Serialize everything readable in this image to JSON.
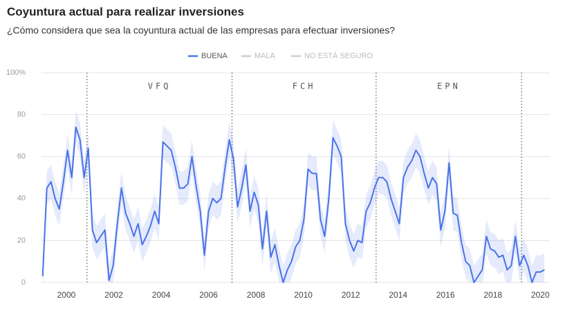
{
  "chart_data": {
    "type": "line",
    "title": "Coyuntura actual para realizar inversiones",
    "subtitle": "¿Cómo considera que sea la coyuntura actual de las empresas para efectuar inversiones?",
    "x": [
      1999,
      1999.175,
      1999.35,
      1999.525,
      1999.7,
      1999.875,
      2000.05,
      2000.225,
      2000.4,
      2000.575,
      2000.75,
      2000.925,
      2001.1,
      2001.275,
      2001.45,
      2001.625,
      2001.8,
      2001.975,
      2002.15,
      2002.325,
      2002.5,
      2002.675,
      2002.85,
      2003.025,
      2003.2,
      2003.375,
      2003.55,
      2003.725,
      2003.9,
      2004.075,
      2004.25,
      2004.425,
      2004.6,
      2004.775,
      2004.95,
      2005.125,
      2005.3,
      2005.475,
      2005.65,
      2005.825,
      2006,
      2006.175,
      2006.35,
      2006.525,
      2006.7,
      2006.875,
      2007.05,
      2007.225,
      2007.4,
      2007.575,
      2007.75,
      2007.925,
      2008.1,
      2008.275,
      2008.45,
      2008.625,
      2008.8,
      2008.975,
      2009.15,
      2009.325,
      2009.5,
      2009.675,
      2009.85,
      2010.025,
      2010.2,
      2010.375,
      2010.55,
      2010.725,
      2010.9,
      2011.075,
      2011.25,
      2011.425,
      2011.6,
      2011.775,
      2011.95,
      2012.125,
      2012.3,
      2012.475,
      2012.65,
      2012.825,
      2013,
      2013.175,
      2013.35,
      2013.525,
      2013.7,
      2013.875,
      2014.05,
      2014.225,
      2014.4,
      2014.575,
      2014.75,
      2014.925,
      2015.1,
      2015.275,
      2015.45,
      2015.625,
      2015.8,
      2015.975,
      2016.15,
      2016.325,
      2016.5,
      2016.675,
      2016.85,
      2017.025,
      2017.2,
      2017.375,
      2017.55,
      2017.725,
      2017.9,
      2018.075,
      2018.25,
      2018.425,
      2018.6,
      2018.775,
      2018.95,
      2019.125,
      2019.3,
      2019.475,
      2019.65,
      2019.825,
      2020,
      2020.175
    ],
    "series": [
      {
        "name": "BUENA",
        "color": "#4a72e8",
        "error": 8,
        "values": [
          3,
          45,
          48,
          40,
          35,
          48,
          63,
          50,
          74,
          68,
          50,
          64,
          25,
          19,
          22,
          25,
          1,
          8,
          28,
          45,
          33,
          28,
          22,
          28,
          18,
          22,
          27,
          34,
          28,
          67,
          65,
          63,
          55,
          45,
          45,
          47,
          60,
          46,
          34,
          13,
          34,
          40,
          38,
          40,
          55,
          68,
          59,
          36,
          45,
          56,
          34,
          43,
          37,
          16,
          34,
          12,
          18,
          8,
          0,
          6,
          10,
          17,
          20,
          30,
          54,
          52,
          52,
          30,
          22,
          40,
          69,
          65,
          60,
          28,
          20,
          15,
          20,
          19,
          34,
          38,
          45,
          50,
          50,
          48,
          40,
          34,
          28,
          50,
          55,
          58,
          63,
          60,
          52,
          45,
          50,
          47,
          25,
          34,
          57,
          33,
          32,
          19,
          10,
          8,
          0,
          3,
          6,
          22,
          16,
          15,
          12,
          13,
          6,
          8,
          22,
          8,
          13,
          8,
          0,
          5,
          5,
          6
        ]
      }
    ],
    "legend_inactive": [
      {
        "name": "MALA",
        "color": "#cccccc"
      },
      {
        "name": "NO ESTÁ SEGURO",
        "color": "#cccccc"
      }
    ],
    "dividers": [
      2000.87,
      2006.99,
      2013.07,
      2019.21
    ],
    "periods": [
      "VFQ",
      "FCH",
      "EPN"
    ],
    "xlim": [
      1998.95,
      2020.4
    ],
    "xticks": [
      2000,
      2002,
      2004,
      2006,
      2008,
      2010,
      2012,
      2014,
      2016,
      2018,
      2020
    ],
    "ylim": [
      0,
      100
    ],
    "yticks": [
      0,
      20,
      40,
      60,
      80,
      {
        "value": 100,
        "label": "100%"
      }
    ],
    "grid": true
  }
}
